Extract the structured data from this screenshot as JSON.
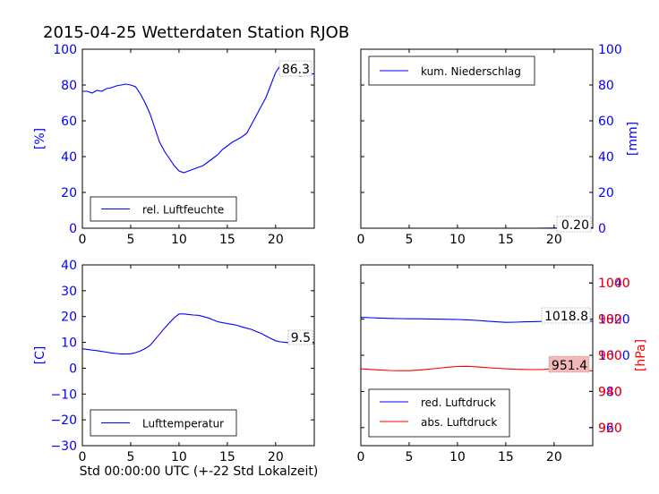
{
  "figure": {
    "title": "2015-04-25 Wetterdaten Station RJOB",
    "footer_xlabel": "Std 00:00:00 UTC (+-22 Std Lokalzeit)"
  },
  "colors": {
    "blue": "#0000ff",
    "red": "#ff0000",
    "black": "#000000",
    "badge_red": "#f4b8b8"
  },
  "chart_data": [
    {
      "id": "humidity",
      "type": "line",
      "title": "",
      "xlabel": "",
      "ylabel": "[%]",
      "ylabel_side": "left",
      "xlim": [
        0,
        24
      ],
      "ylim": [
        0,
        100
      ],
      "xticks": [
        0,
        5,
        10,
        15,
        20
      ],
      "yticks": [
        0,
        20,
        40,
        60,
        80,
        100
      ],
      "ytick_color": "#0000ff",
      "legend": "bottom-left",
      "series": [
        {
          "name": "rel. Luftfeuchte",
          "color": "#0000ff",
          "x": [
            0,
            0.5,
            1,
            1.5,
            2,
            2.5,
            3,
            3.5,
            4,
            4.5,
            5,
            5.5,
            6,
            6.5,
            7,
            7.5,
            8,
            8.5,
            9,
            9.5,
            10,
            10.5,
            11,
            11.5,
            12,
            12.5,
            13,
            13.5,
            14,
            14.5,
            15,
            15.5,
            16,
            16.5,
            17,
            17.5,
            18,
            18.5,
            19,
            19.5,
            20,
            20.5,
            21,
            21.5,
            22,
            22.5,
            23,
            23.5,
            24
          ],
          "y": [
            76.5,
            76.5,
            75.5,
            77,
            76.5,
            78,
            78.5,
            79.5,
            80,
            80.5,
            80,
            79,
            75,
            70,
            64,
            56,
            48,
            43,
            39,
            35,
            32,
            31,
            32,
            33,
            34,
            35,
            37,
            39,
            41,
            44,
            46,
            48,
            49.5,
            51,
            53,
            58,
            63,
            68,
            73,
            80,
            87,
            91,
            90,
            88,
            86,
            85,
            85.5,
            86,
            86.3
          ]
        }
      ],
      "last_value_label": "86.3"
    },
    {
      "id": "precip",
      "type": "line",
      "title": "",
      "xlabel": "",
      "ylabel": "[mm]",
      "ylabel_side": "right",
      "xlim": [
        0,
        24
      ],
      "ylim": [
        0,
        100
      ],
      "xticks": [
        0,
        5,
        10,
        15,
        20
      ],
      "yticks": [
        0,
        20,
        40,
        60,
        80,
        100
      ],
      "ytick_color": "#0000ff",
      "legend": "top-left",
      "series": [
        {
          "name": "kum. Niederschlag",
          "color": "#0000ff",
          "x": [
            0,
            6,
            12,
            18,
            20,
            22,
            24
          ],
          "y": [
            0,
            0,
            0,
            0,
            0.1,
            0.2,
            0.2
          ]
        }
      ],
      "last_value_label": "0.20"
    },
    {
      "id": "temperature",
      "type": "line",
      "title": "",
      "xlabel": "Std 00:00:00 UTC (+-22 Std Lokalzeit)",
      "ylabel": "[C]",
      "ylabel_side": "left",
      "xlim": [
        0,
        24
      ],
      "ylim": [
        -30,
        40
      ],
      "xticks": [
        0,
        5,
        10,
        15,
        20
      ],
      "yticks": [
        -30,
        -20,
        -10,
        0,
        10,
        20,
        30,
        40
      ],
      "ytick_color": "#0000ff",
      "legend": "bottom-left",
      "series": [
        {
          "name": "Lufttemperatur",
          "color": "#0000ff",
          "x": [
            0,
            0.5,
            1,
            1.5,
            2,
            2.5,
            3,
            3.5,
            4,
            4.5,
            5,
            5.5,
            6,
            6.5,
            7,
            7.5,
            8,
            8.5,
            9,
            9.5,
            10,
            10.5,
            11,
            11.5,
            12,
            12.5,
            13,
            13.5,
            14,
            14.5,
            15,
            15.5,
            16,
            16.5,
            17,
            17.5,
            18,
            18.5,
            19,
            19.5,
            20,
            20.5,
            21,
            21.5,
            22,
            22.5,
            23,
            23.5,
            24
          ],
          "y": [
            7.5,
            7.3,
            7,
            6.8,
            6.5,
            6.2,
            5.9,
            5.7,
            5.5,
            5.5,
            5.6,
            6,
            6.7,
            7.6,
            8.8,
            11,
            13.2,
            15.5,
            17.5,
            19.5,
            21,
            21,
            20.8,
            20.6,
            20.5,
            20,
            19.5,
            18.8,
            18,
            17.6,
            17.3,
            17,
            16.6,
            16,
            15.5,
            15,
            14.2,
            13.5,
            12.5,
            11.5,
            10.6,
            10.2,
            10,
            9.8,
            9.6,
            9.5,
            9.5,
            9.5,
            9.5
          ]
        }
      ],
      "last_value_label": "9.5"
    },
    {
      "id": "pressure",
      "type": "line",
      "title": "",
      "xlabel": "",
      "ylabel": "[hPa]",
      "ylabel_side": "right",
      "xlim": [
        0,
        24
      ],
      "ylim": [
        950,
        1050
      ],
      "ylim_right": [
        910,
        1010
      ],
      "xticks": [
        0,
        5,
        10,
        15,
        20
      ],
      "yticks": [
        960,
        980,
        1000,
        1020,
        1040
      ],
      "yticks_right": [
        920,
        940,
        960,
        980,
        1000
      ],
      "ytick_color": "#0000ff",
      "ytick_color_right": "#ff0000",
      "legend": "bottom-left",
      "series": [
        {
          "name": "red. Luftdruck",
          "color": "#0000ff",
          "axis": "left",
          "x": [
            0,
            1,
            2,
            3,
            4,
            5,
            6,
            7,
            8,
            9,
            10,
            11,
            12,
            13,
            14,
            15,
            16,
            17,
            18,
            19,
            20,
            21,
            22,
            23,
            24
          ],
          "y": [
            1021,
            1020.8,
            1020.6,
            1020.4,
            1020.3,
            1020.2,
            1020.2,
            1020.1,
            1020,
            1019.9,
            1019.8,
            1019.6,
            1019.3,
            1018.9,
            1018.5,
            1018.2,
            1018.3,
            1018.5,
            1018.6,
            1018.8,
            1019,
            1019.2,
            1019.1,
            1018.9,
            1018.8
          ]
        },
        {
          "name": "abs. Luftdruck",
          "color": "#ff0000",
          "axis": "right",
          "x": [
            0,
            1,
            2,
            3,
            4,
            5,
            6,
            7,
            8,
            9,
            10,
            11,
            12,
            13,
            14,
            15,
            16,
            17,
            18,
            19,
            20,
            21,
            22,
            23,
            24
          ],
          "y": [
            952.5,
            952.2,
            951.9,
            951.6,
            951.5,
            951.5,
            951.8,
            952.3,
            952.8,
            953.4,
            953.8,
            953.9,
            953.6,
            953.2,
            952.8,
            952.5,
            952.3,
            952.2,
            952.1,
            952.2,
            952.6,
            953,
            952.3,
            951.7,
            951.4
          ]
        }
      ],
      "last_value_labels": [
        "1018.8",
        "951.4"
      ]
    }
  ]
}
